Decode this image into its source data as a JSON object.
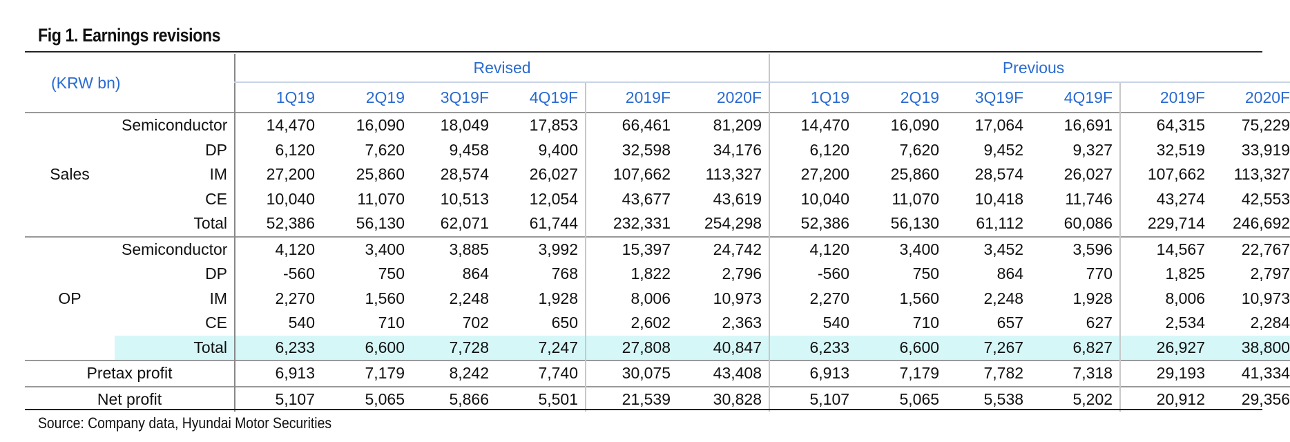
{
  "title": "Fig 1. Earnings revisions",
  "unit": "(KRW bn)",
  "groups": {
    "revised": "Revised",
    "previous": "Previous"
  },
  "periods": [
    "1Q19",
    "2Q19",
    "3Q19F",
    "4Q19F",
    "2019F",
    "2020F"
  ],
  "sections": [
    {
      "label": "Sales",
      "rows": [
        {
          "name": "Semiconductor",
          "revised": [
            "14,470",
            "16,090",
            "18,049",
            "17,853",
            "66,461",
            "81,209"
          ],
          "previous": [
            "14,470",
            "16,090",
            "17,064",
            "16,691",
            "64,315",
            "75,229"
          ]
        },
        {
          "name": "DP",
          "revised": [
            "6,120",
            "7,620",
            "9,458",
            "9,400",
            "32,598",
            "34,176"
          ],
          "previous": [
            "6,120",
            "7,620",
            "9,452",
            "9,327",
            "32,519",
            "33,919"
          ]
        },
        {
          "name": "IM",
          "revised": [
            "27,200",
            "25,860",
            "28,574",
            "26,027",
            "107,662",
            "113,327"
          ],
          "previous": [
            "27,200",
            "25,860",
            "28,574",
            "26,027",
            "107,662",
            "113,327"
          ]
        },
        {
          "name": "CE",
          "revised": [
            "10,040",
            "11,070",
            "10,513",
            "12,054",
            "43,677",
            "43,619"
          ],
          "previous": [
            "10,040",
            "11,070",
            "10,418",
            "11,746",
            "43,274",
            "42,553"
          ]
        },
        {
          "name": "Total",
          "revised": [
            "52,386",
            "56,130",
            "62,071",
            "61,744",
            "232,331",
            "254,298"
          ],
          "previous": [
            "52,386",
            "56,130",
            "61,112",
            "60,086",
            "229,714",
            "246,692"
          ]
        }
      ]
    },
    {
      "label": "OP",
      "rows": [
        {
          "name": "Semiconductor",
          "revised": [
            "4,120",
            "3,400",
            "3,885",
            "3,992",
            "15,397",
            "24,742"
          ],
          "previous": [
            "4,120",
            "3,400",
            "3,452",
            "3,596",
            "14,567",
            "22,767"
          ]
        },
        {
          "name": "DP",
          "revised": [
            "-560",
            "750",
            "864",
            "768",
            "1,822",
            "2,796"
          ],
          "previous": [
            "-560",
            "750",
            "864",
            "770",
            "1,825",
            "2,797"
          ]
        },
        {
          "name": "IM",
          "revised": [
            "2,270",
            "1,560",
            "2,248",
            "1,928",
            "8,006",
            "10,973"
          ],
          "previous": [
            "2,270",
            "1,560",
            "2,248",
            "1,928",
            "8,006",
            "10,973"
          ]
        },
        {
          "name": "CE",
          "revised": [
            "540",
            "710",
            "702",
            "650",
            "2,602",
            "2,363"
          ],
          "previous": [
            "540",
            "710",
            "657",
            "627",
            "2,534",
            "2,284"
          ]
        },
        {
          "name": "Total",
          "revised": [
            "6,233",
            "6,600",
            "7,728",
            "7,247",
            "27,808",
            "40,847"
          ],
          "previous": [
            "6,233",
            "6,600",
            "7,267",
            "6,827",
            "26,927",
            "38,800"
          ]
        }
      ]
    }
  ],
  "extra_rows": [
    {
      "name": "Pretax profit",
      "revised": [
        "6,913",
        "7,179",
        "8,242",
        "7,740",
        "30,075",
        "43,408"
      ],
      "previous": [
        "6,913",
        "7,179",
        "7,782",
        "7,318",
        "29,193",
        "41,334"
      ]
    },
    {
      "name": "Net profit",
      "revised": [
        "5,107",
        "5,065",
        "5,866",
        "5,501",
        "21,539",
        "30,828"
      ],
      "previous": [
        "5,107",
        "5,065",
        "5,538",
        "5,202",
        "20,912",
        "29,356"
      ]
    }
  ],
  "source": "Source: Company data, Hyundai Motor Securities",
  "colors": {
    "header_blue": "#2a6bd0",
    "highlight": "#d6f7f8"
  }
}
